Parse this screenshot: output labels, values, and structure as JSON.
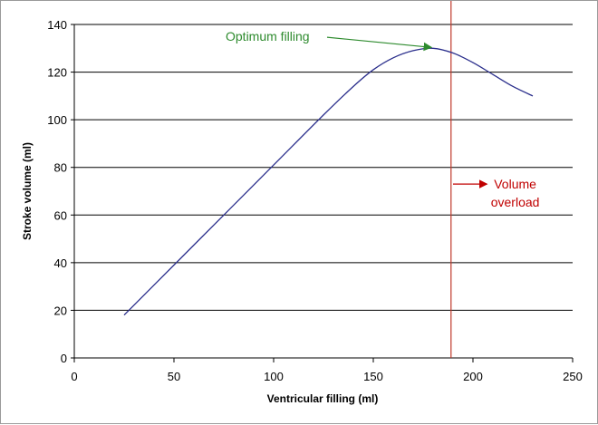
{
  "chart_data": {
    "type": "line",
    "title": "",
    "xlabel": "Ventricular filling (ml)",
    "ylabel": "Stroke volume (ml)",
    "xlim": [
      0,
      250
    ],
    "ylim": [
      0,
      140
    ],
    "x_ticks": [
      0,
      50,
      100,
      150,
      200,
      250
    ],
    "y_ticks": [
      0,
      20,
      40,
      60,
      80,
      100,
      120,
      140
    ],
    "grid": "horizontal",
    "legend": "none",
    "series": [
      {
        "name": "Stroke volume",
        "color": "#2b2f8c",
        "x": [
          25,
          50,
          75,
          100,
          125,
          140,
          150,
          160,
          170,
          180,
          190,
          200,
          210,
          220,
          230
        ],
        "y": [
          18,
          39,
          60,
          81,
          102,
          114,
          121,
          126,
          129,
          130,
          128,
          124,
          119,
          114,
          110
        ]
      }
    ],
    "reference_line": {
      "x": 189,
      "color": "#c0392b"
    },
    "annotations": [
      {
        "id": "optimum",
        "text": "Optimum filling",
        "color": "#2e8b2e",
        "text_at": [
          75,
          135
        ],
        "arrow_to": [
          180,
          130
        ]
      },
      {
        "id": "overload",
        "lines": [
          "Volume",
          "overload"
        ],
        "color": "#c00000",
        "text_at": [
          213,
          72
        ],
        "arrow_from": [
          190,
          73
        ],
        "arrow_to": [
          207,
          73
        ]
      }
    ]
  }
}
